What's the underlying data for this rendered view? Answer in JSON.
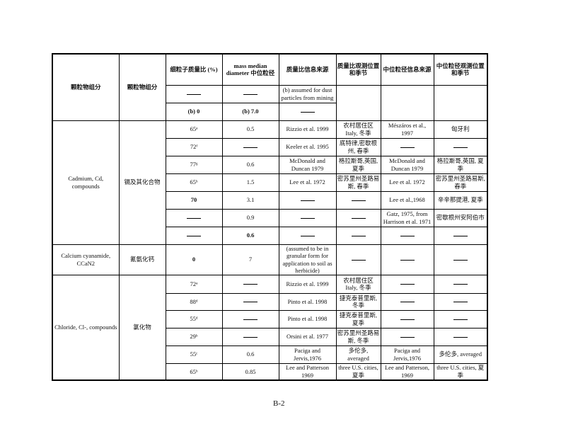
{
  "headers": [
    "颗粒物组分",
    "颗粒物组分",
    "细粒子质量比 (%)",
    "mass median diameter 中位粒径",
    "质量比信息来源",
    "质量比观测位置和季节",
    "中位粒径信息来源",
    "中位粒径观测位置和季节"
  ],
  "pre_rows": [
    {
      "fine": "—",
      "mmd": "—",
      "src": "(b) assumed for dust particles from mining"
    },
    {
      "fine": "(b)  0",
      "mmd": "(b) 7.0",
      "src": "—"
    }
  ],
  "groups": [
    {
      "name_en": "Cadmium, Cd, compounds",
      "name_zh": "镉及其化合物",
      "rows": [
        {
          "fine": "65ᵃ",
          "mmd": "0.5",
          "src": "Rizzio et al. 1999",
          "loc": "农村居住区 Italy, 冬季",
          "mmd_src": "Mészáros et al., 1997",
          "mmd_loc": "匈牙利"
        },
        {
          "fine": "72ᶠ",
          "mmd": "—",
          "src": "Keeler et al. 1995",
          "loc": "底特律,密歇根州, 春季",
          "mmd_src": "—",
          "mmd_loc": "—"
        },
        {
          "fine": "77ᵍ",
          "mmd": "0.6",
          "src": "McDonald and Duncan 1979",
          "loc": "格拉斯哥,英国,夏季",
          "mmd_src": "McDonald and Duncan 1979",
          "mmd_loc": "格拉斯哥,英国, 夏季"
        },
        {
          "fine": "65ʰ",
          "mmd": "1.5",
          "src": "Lee et al. 1972",
          "loc": "密苏里州圣路易斯, 春季",
          "mmd_src": "Lee et al. 1972",
          "mmd_loc": "密苏里州圣路易斯, 春季"
        },
        {
          "fine": "70",
          "mmd": "3.1",
          "src": "—",
          "loc": "—",
          "mmd_src": "Lee et al.,1968",
          "mmd_loc": "辛辛那提港, 夏季"
        },
        {
          "fine": "—",
          "mmd": "0.9",
          "src": "—",
          "loc": "—",
          "mmd_src": "Gatz, 1975, from Harrison et al. 1971",
          "mmd_loc": "密歇根州安阿伯市"
        },
        {
          "fine": "—",
          "mmd": "0.6",
          "src": "—",
          "loc": "—",
          "mmd_src": "—",
          "mmd_loc": "—"
        }
      ]
    },
    {
      "name_en": "Calcium cyanamide, CCaN2",
      "name_zh": "氰氨化钙",
      "rows": [
        {
          "fine": "0",
          "mmd": "7",
          "src": "(assumed to be in granular form for application to soil as herbicide)",
          "loc": "—",
          "mmd_src": "—",
          "mmd_loc": "—"
        }
      ]
    },
    {
      "name_en": "Chloride, Cl-, compounds",
      "name_zh": "氯化物",
      "rows": [
        {
          "fine": "72ᵃ",
          "mmd": "—",
          "src": "Rizzio et al. 1999",
          "loc": "农村居住区 Italy, 冬季",
          "mmd_src": "—",
          "mmd_loc": "—"
        },
        {
          "fine": "88ᵈ",
          "mmd": "—",
          "src": "Pinto et al. 1998",
          "loc": "捷克泰普里斯, 冬季",
          "mmd_src": "—",
          "mmd_loc": "—"
        },
        {
          "fine": "55ᵈ",
          "mmd": "—",
          "src": "Pinto et al. 1998",
          "loc": "捷克泰普里斯, 夏季",
          "mmd_src": "—",
          "mmd_loc": "—"
        },
        {
          "fine": "29ʰ",
          "mmd": "—",
          "src": "Orsini et al. 1977",
          "loc": "密苏里州圣路易斯, 冬季",
          "mmd_src": "—",
          "mmd_loc": "—"
        },
        {
          "fine": "55ᶜ",
          "mmd": "0.6",
          "src": "Paciga and Jervis,1976",
          "loc": "多伦多, averaged",
          "mmd_src": "Paciga and Jervis,1976",
          "mmd_loc": "多伦多, averaged"
        },
        {
          "fine": "65ʰ",
          "mmd": "0.85",
          "src": "Lee and Patterson 1969",
          "loc": "three U.S. cities, 夏季",
          "mmd_src": "Lee and Patterson, 1969",
          "mmd_loc": "three U.S. cities, 夏季"
        }
      ]
    }
  ],
  "page_number": "B-2"
}
